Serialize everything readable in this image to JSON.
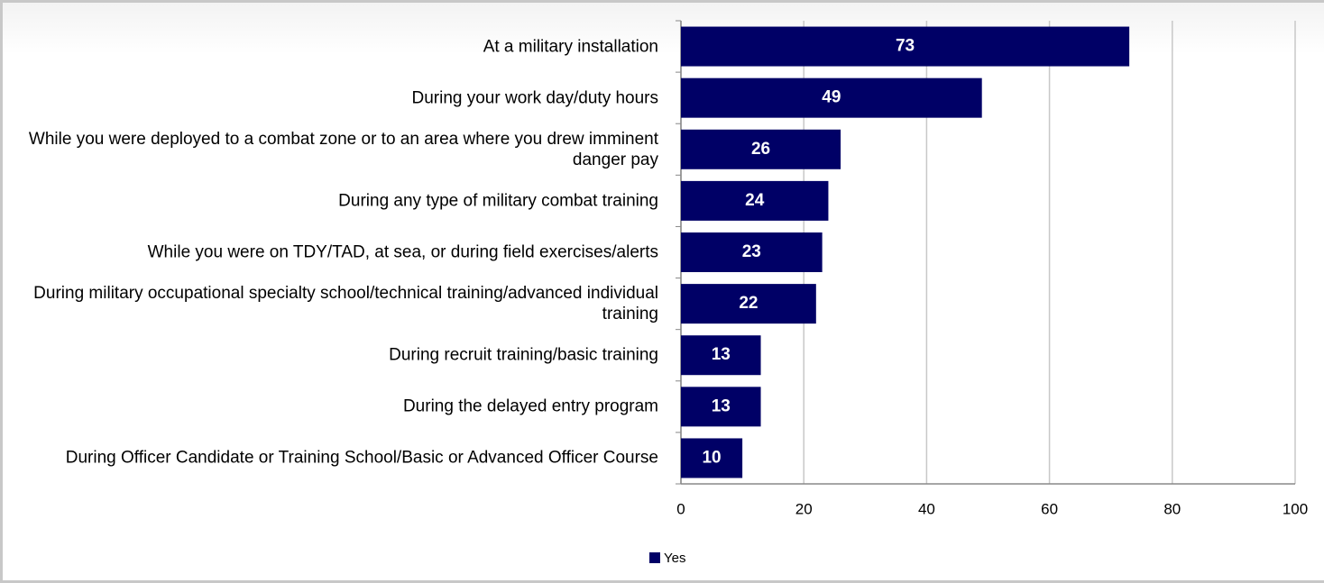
{
  "chart_data": {
    "type": "bar",
    "orientation": "horizontal",
    "categories": [
      "At a military installation",
      "During your work day/duty hours",
      "While you were deployed to a combat zone or to an area where you drew imminent danger pay",
      "During any type of military combat training",
      "While you were on TDY/TAD, at sea, or during field exercises/alerts",
      "During military occupational specialty school/technical training/advanced individual training",
      "During recruit training/basic training",
      "During the delayed entry program",
      "During Officer Candidate or Training School/Basic or Advanced Officer Course"
    ],
    "series": [
      {
        "name": "Yes",
        "color": "#000066",
        "values": [
          73,
          49,
          26,
          24,
          23,
          22,
          13,
          13,
          10
        ]
      }
    ],
    "xlim": [
      0,
      100
    ],
    "xticks": [
      0,
      20,
      40,
      60,
      80,
      100
    ],
    "grid": true,
    "legend": "bottom"
  }
}
